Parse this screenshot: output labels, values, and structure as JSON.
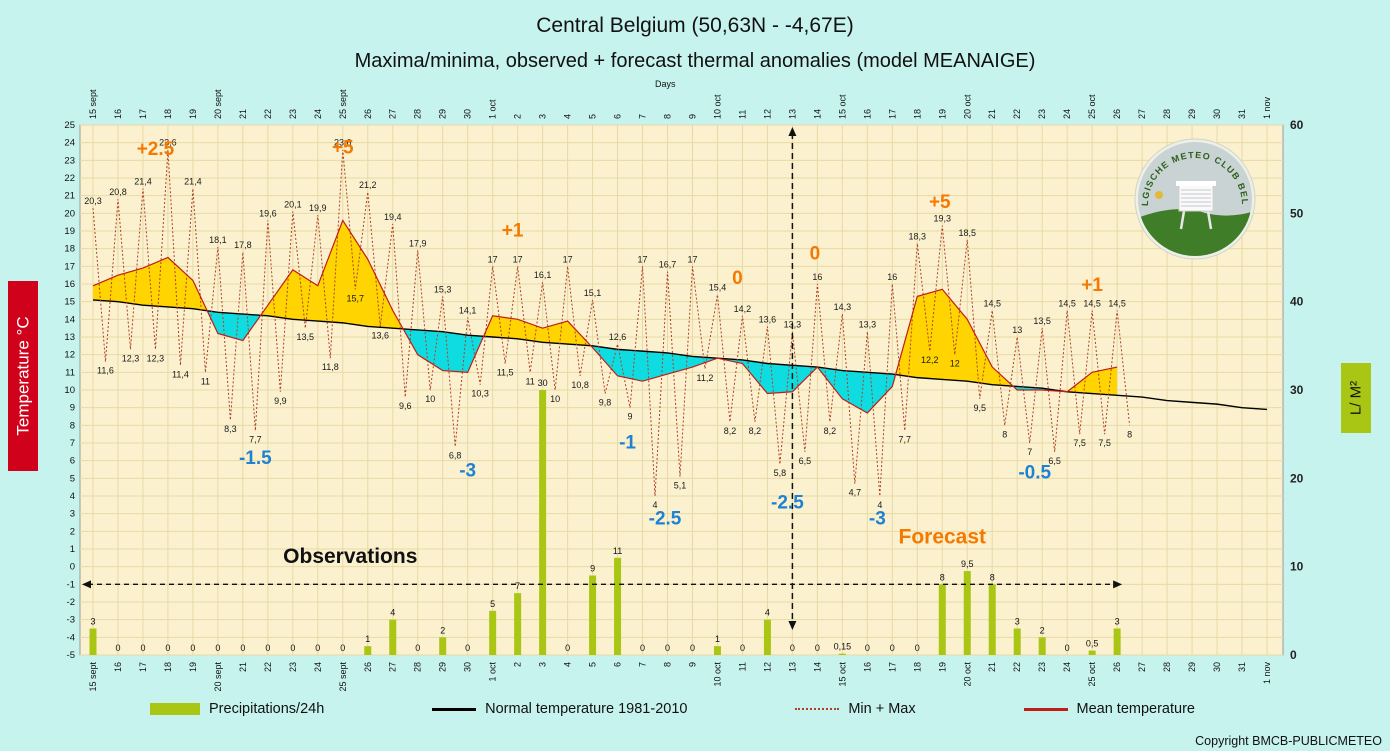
{
  "header": {
    "title": "Central Belgium (50,63N - -4,67E)",
    "subtitle": "Maxima/minima, observed + forecast thermal anomalies (model MEANAIGE)"
  },
  "axes": {
    "left_label": "Temperature °C",
    "right_label": "L/ M²",
    "days_label": "Days"
  },
  "legend": {
    "items": [
      {
        "label": "Precipitations/24h",
        "swatch": "bar",
        "color": "#a8c613"
      },
      {
        "label": "Normal temperature 1981-2010",
        "swatch": "line",
        "color": "#000000"
      },
      {
        "label": "Min + Max",
        "swatch": "dotted",
        "color": "#b0402a"
      },
      {
        "label": "Mean temperature",
        "swatch": "line",
        "color": "#c01d18"
      }
    ]
  },
  "logo": {
    "text": "BELGISCHE METEO CLUB BELGE"
  },
  "footer": {
    "copyright": "Copyright BMCB-PUBLICMETEO"
  },
  "annotations": {
    "anomalies": [
      {
        "text": "+2.5",
        "day": 2.5,
        "temp": 23.3,
        "sign": "pos"
      },
      {
        "text": "+5",
        "day": 10.0,
        "temp": 23.4,
        "sign": "pos"
      },
      {
        "text": "+1",
        "day": 16.8,
        "temp": 18.7,
        "sign": "pos"
      },
      {
        "text": "0",
        "day": 25.8,
        "temp": 16.0,
        "sign": "pos"
      },
      {
        "text": "0",
        "day": 28.9,
        "temp": 17.4,
        "sign": "pos"
      },
      {
        "text": "+5",
        "day": 33.9,
        "temp": 20.3,
        "sign": "pos"
      },
      {
        "text": "+1",
        "day": 40.0,
        "temp": 15.6,
        "sign": "pos"
      },
      {
        "text": "-1.5",
        "day": 6.5,
        "temp": 5.8,
        "sign": "neg"
      },
      {
        "text": "-3",
        "day": 15.0,
        "temp": 5.1,
        "sign": "neg"
      },
      {
        "text": "-1",
        "day": 21.4,
        "temp": 6.7,
        "sign": "neg"
      },
      {
        "text": "-2.5",
        "day": 22.9,
        "temp": 2.4,
        "sign": "neg"
      },
      {
        "text": "-2.5",
        "day": 27.8,
        "temp": 3.3,
        "sign": "neg"
      },
      {
        "text": "-3",
        "day": 31.4,
        "temp": 2.4,
        "sign": "neg"
      },
      {
        "text": "-0.5",
        "day": 37.7,
        "temp": 5.0,
        "sign": "neg"
      }
    ],
    "observations": {
      "text": "Observations",
      "day": 10.3,
      "temp": 0.2
    },
    "forecast": {
      "text": "Forecast",
      "day": 34.0,
      "temp": 1.3
    },
    "forecast_divider_day": 28,
    "h_arrow_temp": -1,
    "h_arrow_end_day": 41.2
  },
  "chart_data": {
    "type": "line",
    "x_labels": [
      "15 sept",
      "16",
      "17",
      "18",
      "19",
      "20 sept",
      "21",
      "22",
      "23",
      "24",
      "25 sept",
      "26",
      "27",
      "28",
      "29",
      "30",
      "1 oct",
      "2",
      "3",
      "4",
      "5",
      "6",
      "7",
      "8",
      "9",
      "10 oct",
      "11",
      "12",
      "13",
      "14",
      "15 oct",
      "16",
      "17",
      "18",
      "19",
      "20 oct",
      "21",
      "22",
      "23",
      "24",
      "25 oct",
      "26",
      "27",
      "28",
      "29",
      "30",
      "31",
      "1 nov"
    ],
    "temp_axis": {
      "min": -5,
      "max": 25,
      "ticks": [
        25,
        24,
        23,
        22,
        21,
        20,
        19,
        18,
        17,
        16,
        15,
        14,
        13,
        12,
        11,
        10,
        9,
        8,
        7,
        6,
        5,
        4,
        3,
        2,
        1,
        0,
        -1,
        -2,
        -3,
        -4,
        -5
      ]
    },
    "precip_axis": {
      "min": 0,
      "max": 60,
      "ticks": [
        60,
        50,
        40,
        30,
        20,
        10,
        0
      ]
    },
    "max": [
      20.3,
      20.8,
      21.4,
      23.6,
      21.4,
      18.1,
      17.8,
      19.6,
      20.1,
      19.9,
      23.6,
      21.2,
      19.4,
      17.9,
      15.3,
      14.1,
      17,
      17,
      16.1,
      17,
      15.1,
      12.6,
      17,
      16.7,
      17,
      15.4,
      14.2,
      13.6,
      13.3,
      16,
      14.3,
      13.3,
      16,
      18.3,
      19.3,
      18.5,
      14.5,
      13,
      13.5,
      14.5,
      14.5,
      14.5
    ],
    "min": [
      11.6,
      12.3,
      12.3,
      11.4,
      11,
      8.3,
      7.7,
      9.9,
      13.5,
      11.8,
      15.7,
      13.6,
      9.6,
      10,
      6.8,
      10.3,
      11.5,
      11,
      10,
      10.8,
      9.8,
      9,
      4,
      5.1,
      11.2,
      8.2,
      8.2,
      5.8,
      6.5,
      8.2,
      4.7,
      4,
      7.7,
      12.2,
      12,
      9.5,
      8,
      7,
      6.5,
      7.5,
      7.5,
      8
    ],
    "mean": [
      15.9,
      16.5,
      16.9,
      17.5,
      16.2,
      13.2,
      12.8,
      14.8,
      16.8,
      15.9,
      19.6,
      17.4,
      14.5,
      12.0,
      11.1,
      11.0,
      14.2,
      14.0,
      13.5,
      13.9,
      12.4,
      10.8,
      10.5,
      10.9,
      11.3,
      11.8,
      11.5,
      9.8,
      9.9,
      11.3,
      9.5,
      8.7,
      10.2,
      15.3,
      15.7,
      14.0,
      11.3,
      10.0,
      10.0,
      9.9,
      11.0,
      11.3
    ],
    "normal": [
      15.1,
      15.0,
      14.8,
      14.7,
      14.6,
      14.4,
      14.3,
      14.2,
      14.0,
      13.9,
      13.8,
      13.6,
      13.5,
      13.4,
      13.3,
      13.1,
      13.0,
      12.9,
      12.7,
      12.6,
      12.5,
      12.3,
      12.2,
      12.1,
      11.9,
      11.8,
      11.7,
      11.5,
      11.4,
      11.3,
      11.1,
      11.0,
      10.9,
      10.7,
      10.6,
      10.5,
      10.3,
      10.2,
      10.1,
      9.9,
      9.8,
      9.7,
      9.6,
      9.4,
      9.3,
      9.2,
      9.0,
      8.9
    ],
    "precip": [
      3,
      0,
      0,
      0,
      0,
      0,
      0,
      0,
      0,
      0,
      0,
      1,
      4,
      0,
      2,
      0,
      5,
      7,
      30,
      0,
      9,
      11,
      0,
      0,
      0,
      1,
      0,
      4,
      0,
      0,
      0.15,
      0,
      0,
      0,
      8,
      9.5,
      8,
      3,
      2,
      0,
      0.5,
      3
    ],
    "colors": {
      "precip_bar": "#a8c613",
      "normal_line": "#000000",
      "minmax_line": "#b0402a",
      "mean_line": "#c01d18",
      "warm_fill": "#ffd400",
      "cold_fill": "#0fdce0",
      "pos_label": "#f57900",
      "neg_label": "#1e82d2"
    }
  }
}
